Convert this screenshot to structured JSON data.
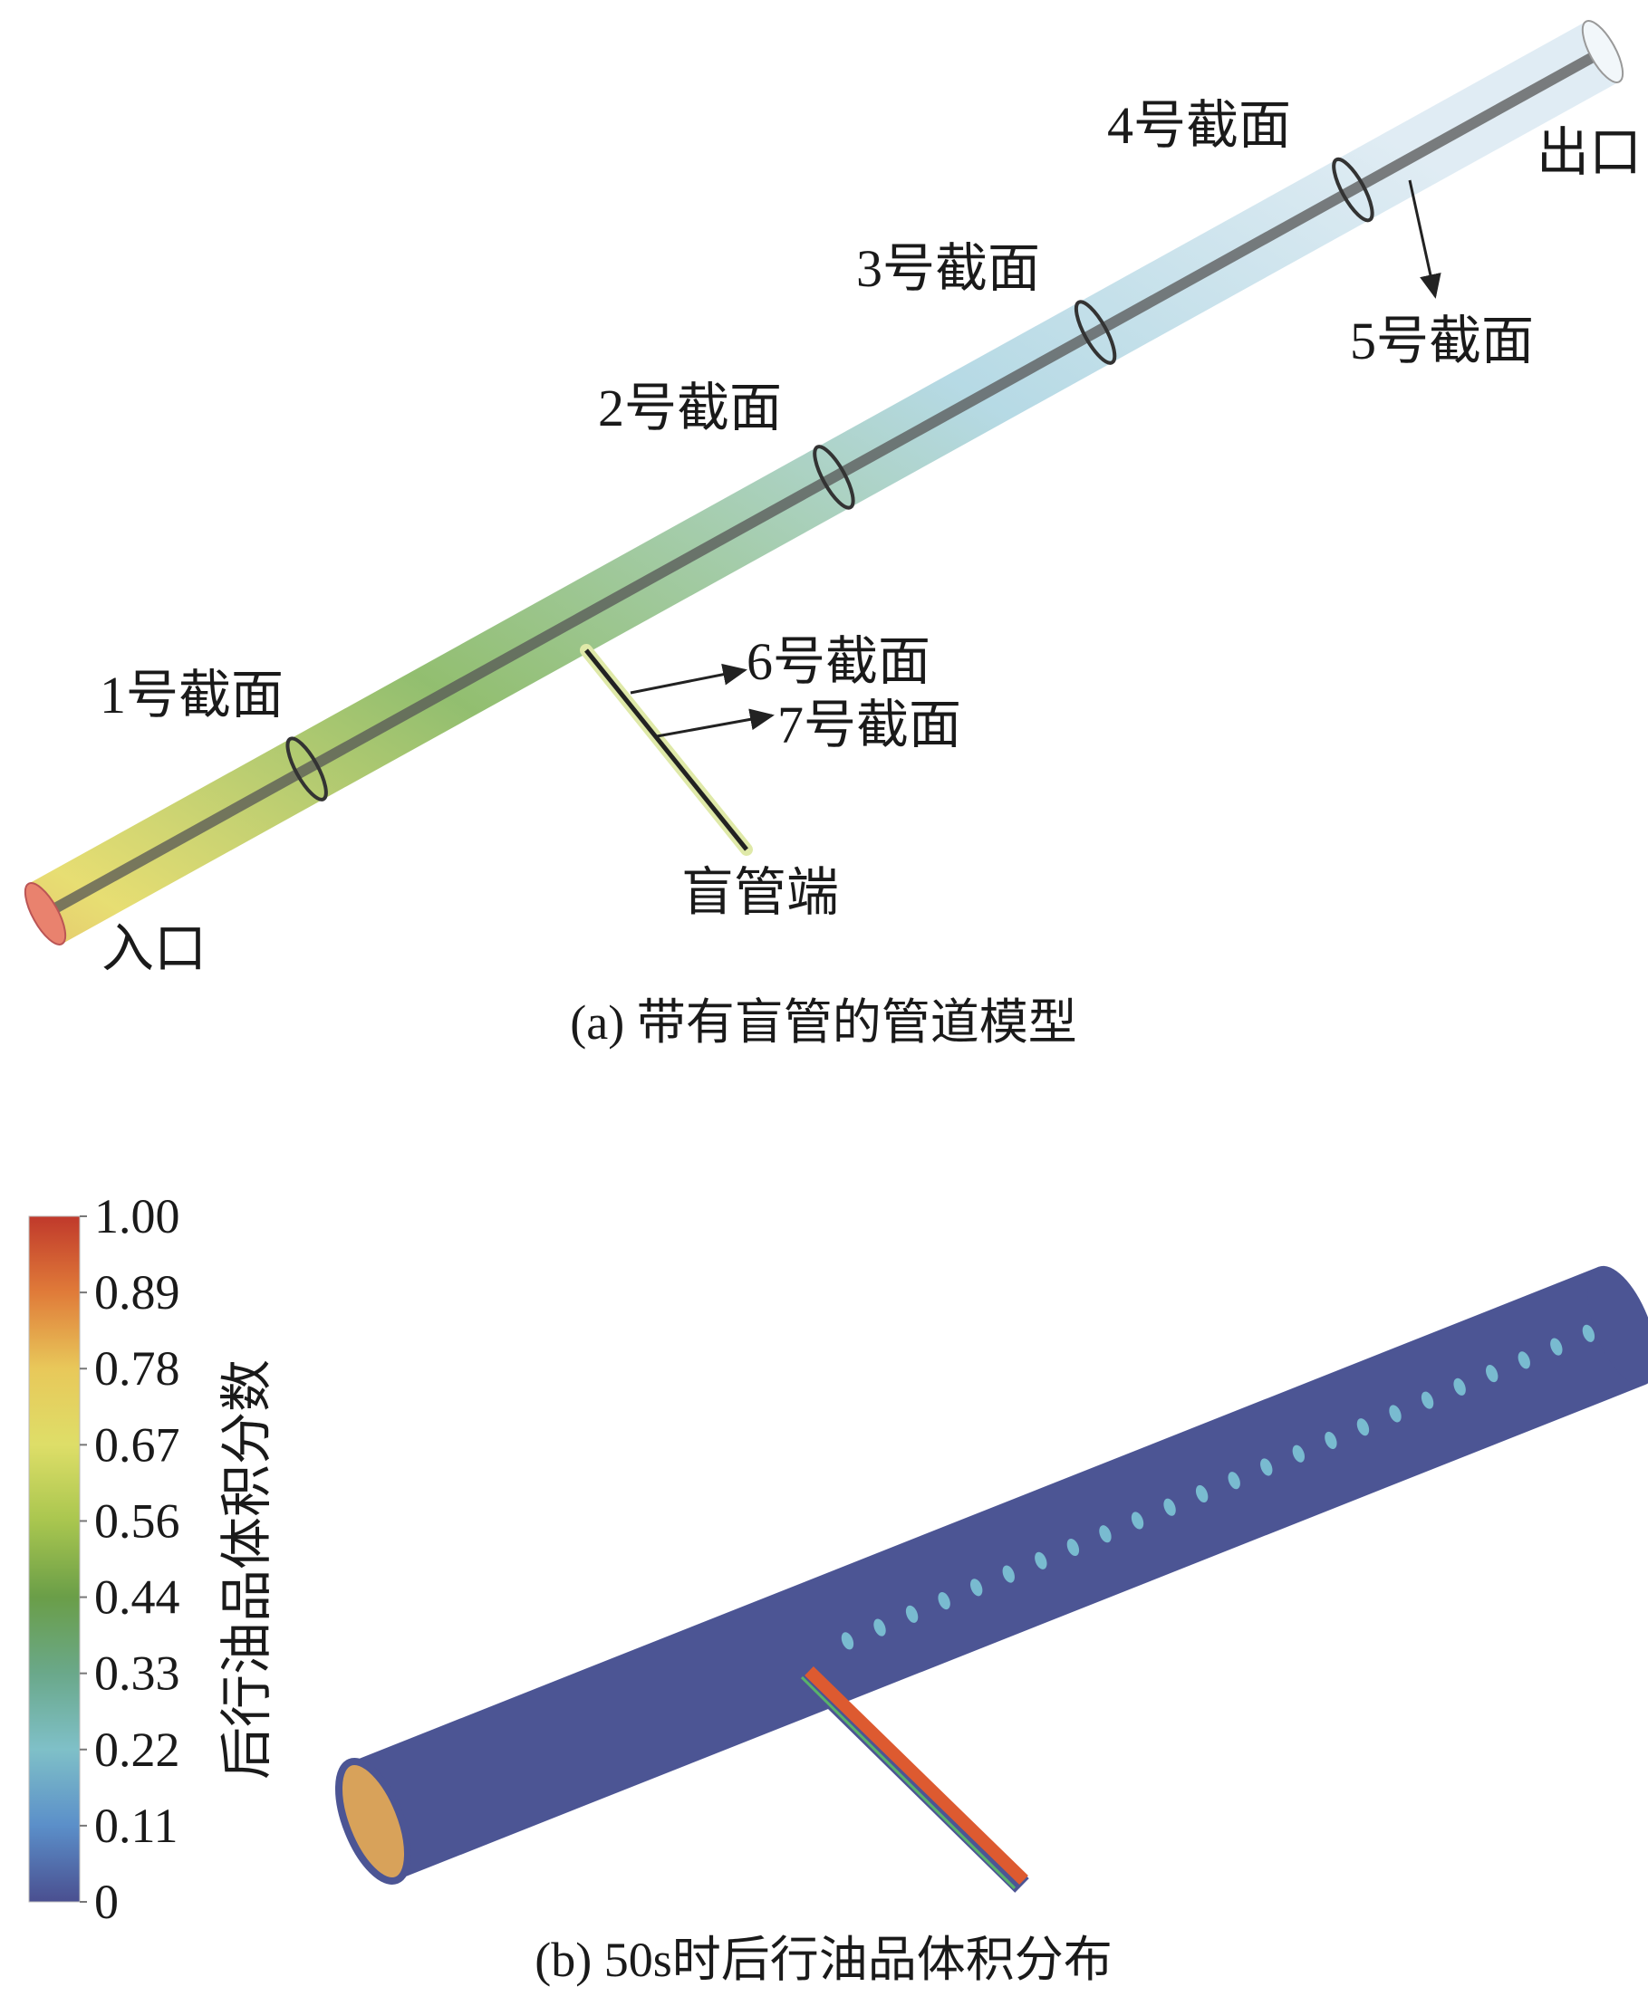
{
  "panel_a": {
    "caption": "(a) 带有盲管的管道模型",
    "inlet_label": "入口",
    "outlet_label": "出口",
    "blind_end_label": "盲管端",
    "sections": [
      "1号截面",
      "2号截面",
      "3号截面",
      "4号截面",
      "5号截面",
      "6号截面",
      "7号截面"
    ],
    "gradient_colors": [
      "#d9503a",
      "#e3d85a",
      "#7fb356",
      "#a9d3e0",
      "#dbe9f2"
    ]
  },
  "panel_b": {
    "caption": "(b) 50s时后行油品体积分布",
    "colorbar": {
      "title": "后行油品体积分数",
      "ticks": [
        "1.00",
        "0.89",
        "0.78",
        "0.67",
        "0.56",
        "0.44",
        "0.33",
        "0.22",
        "0.11",
        "0"
      ],
      "colors": [
        "#c0392b",
        "#e07b39",
        "#e8c85a",
        "#dede68",
        "#a9c64f",
        "#6a9e48",
        "#6aa88a",
        "#7fc0c8",
        "#5b8fc9",
        "#4a4f90"
      ]
    },
    "pipe_color": "#4c5594",
    "spot_color": "#7ec6d6",
    "blind_pipe_color": "#dd5a30"
  }
}
